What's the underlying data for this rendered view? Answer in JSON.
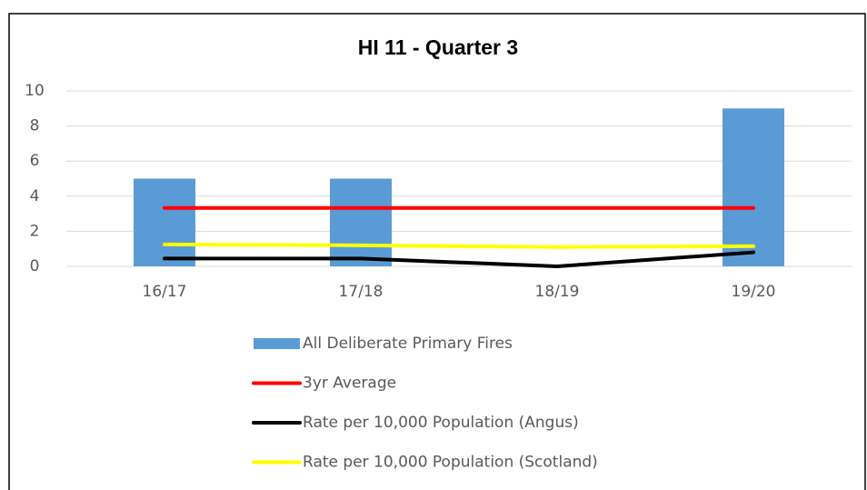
{
  "chart_data": {
    "type": "bar",
    "title": "HI 11 - Quarter 3",
    "categories": [
      "16/17",
      "17/18",
      "18/19",
      "19/20"
    ],
    "series": [
      {
        "name": "All Deliberate Primary Fires",
        "type": "bar",
        "color": "#5b9bd5",
        "values": [
          5,
          5,
          0,
          9
        ]
      },
      {
        "name": "3yr Average",
        "type": "line",
        "color": "#ff0000",
        "values": [
          3.33,
          3.33,
          3.33,
          3.33
        ]
      },
      {
        "name": "Rate per 10,000 Population (Angus)",
        "type": "line",
        "color": "#000000",
        "values": [
          0.45,
          0.45,
          0,
          0.8
        ]
      },
      {
        "name": "Rate per 10,000 Population (Scotland)",
        "type": "line",
        "color": "#ffff00",
        "values": [
          1.25,
          1.2,
          1.1,
          1.15
        ]
      }
    ],
    "ylim": [
      0,
      10
    ],
    "yticks": [
      0,
      2,
      4,
      6,
      8,
      10
    ],
    "grid": true,
    "legend": "bottom"
  }
}
